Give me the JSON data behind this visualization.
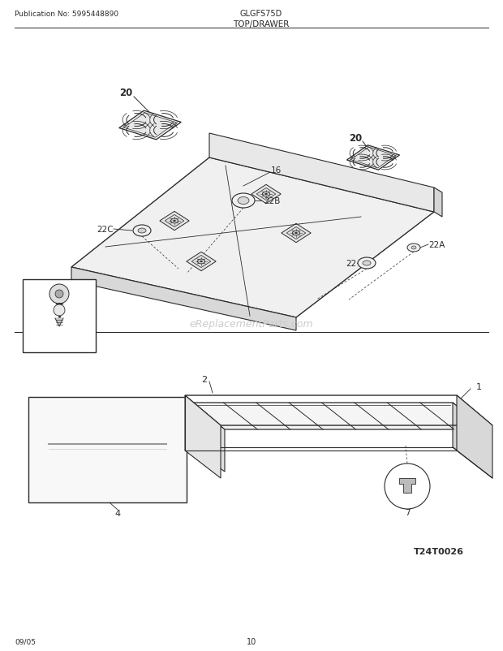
{
  "title": "TOP/DRAWER",
  "pub_no": "Publication No: 5995448890",
  "model": "GLGFS75D",
  "date": "09/05",
  "page": "10",
  "watermark": "eReplacementParts.com",
  "ref_code": "T24T0026",
  "bg_color": "#ffffff",
  "line_color": "#2a2a2a",
  "gray1": "#e8e8e8",
  "gray2": "#d0d0d0",
  "gray3": "#b8b8b8"
}
